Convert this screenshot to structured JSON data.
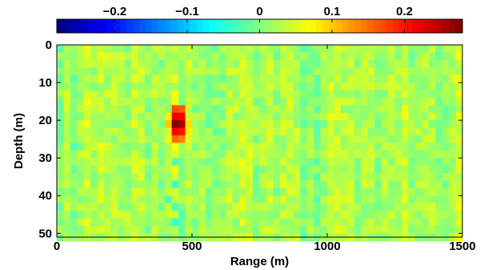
{
  "chart_data": {
    "type": "heatmap",
    "title": "",
    "xlabel": "Range (m)",
    "ylabel": "Depth (m)",
    "xlim": [
      0,
      1500
    ],
    "ylim": [
      0,
      51
    ],
    "y_reversed": true,
    "x_ticks": [
      0,
      500,
      1000,
      1500
    ],
    "y_ticks": [
      0,
      10,
      20,
      30,
      40,
      50
    ],
    "colorbar": {
      "placement": "top",
      "colormap": "jet",
      "clim": [
        -0.28,
        0.28
      ],
      "ticks": [
        -0.2,
        -0.1,
        0,
        0.1,
        0.2
      ],
      "tick_labels": [
        "−0.2",
        "−0.1",
        "0",
        "0.1",
        "0.2"
      ]
    },
    "grid": false,
    "background_level": 0.02,
    "features": [
      {
        "range_m": 450,
        "depth_m": 20,
        "value": 0.28,
        "description": "peak"
      }
    ],
    "cells": [
      {
        "range_m": 437,
        "depth_m": 20,
        "value": 0.28
      },
      {
        "range_m": 463,
        "depth_m": 20,
        "value": 0.26
      },
      {
        "range_m": 437,
        "depth_m": 18,
        "value": 0.22
      },
      {
        "range_m": 463,
        "depth_m": 18,
        "value": 0.21
      },
      {
        "range_m": 437,
        "depth_m": 22,
        "value": 0.21
      },
      {
        "range_m": 463,
        "depth_m": 22,
        "value": 0.2
      },
      {
        "range_m": 437,
        "depth_m": 16,
        "value": 0.17
      },
      {
        "range_m": 463,
        "depth_m": 16,
        "value": 0.16
      },
      {
        "range_m": 437,
        "depth_m": 24,
        "value": 0.15
      },
      {
        "range_m": 463,
        "depth_m": 24,
        "value": 0.14
      },
      {
        "range_m": 412,
        "depth_m": 20,
        "value": 0.1
      },
      {
        "range_m": 488,
        "depth_m": 20,
        "value": 0.09
      },
      {
        "range_m": 412,
        "depth_m": 18,
        "value": 0.08
      },
      {
        "range_m": 488,
        "depth_m": 22,
        "value": 0.08
      },
      {
        "range_m": 437,
        "depth_m": 14,
        "value": 0.07
      },
      {
        "range_m": 437,
        "depth_m": 26,
        "value": 0.07
      },
      {
        "range_m": 412,
        "depth_m": 24,
        "value": 0.06
      },
      {
        "range_m": 437,
        "depth_m": 30,
        "value": -0.03
      },
      {
        "range_m": 437,
        "depth_m": 36,
        "value": -0.04
      },
      {
        "range_m": 437,
        "depth_m": 42,
        "value": -0.03
      },
      {
        "range_m": 437,
        "depth_m": 46,
        "value": -0.04
      },
      {
        "range_m": 412,
        "depth_m": 40,
        "value": -0.03
      },
      {
        "range_m": 463,
        "depth_m": 44,
        "value": -0.03
      }
    ]
  }
}
